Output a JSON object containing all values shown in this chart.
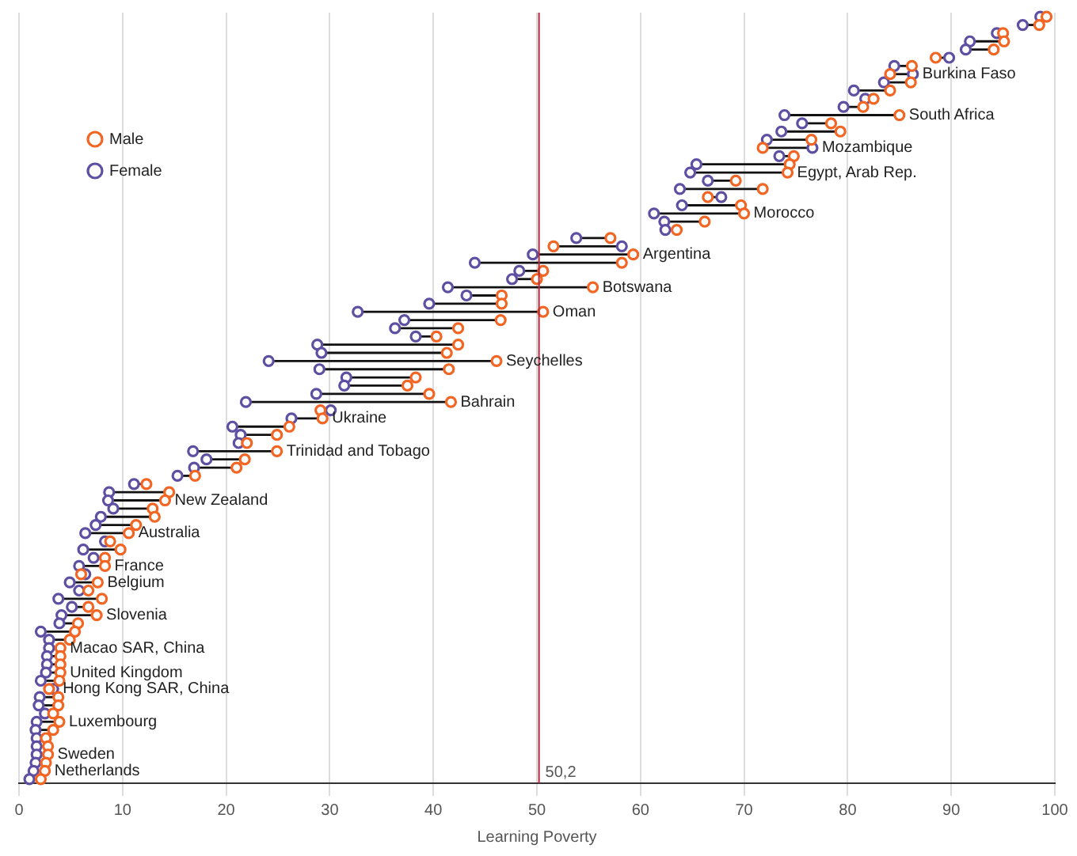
{
  "chart_data": {
    "type": "scatter",
    "orientation": "horizontal",
    "xlabel": "Learning Poverty",
    "categories": [
      null,
      null,
      null,
      null,
      null,
      null,
      null,
      "Burkina Faso",
      null,
      null,
      null,
      null,
      "South Africa",
      null,
      null,
      null,
      "Mozambique",
      null,
      null,
      "Egypt, Arab Rep.",
      null,
      null,
      null,
      null,
      "Morocco",
      null,
      null,
      null,
      null,
      "Argentina",
      null,
      null,
      null,
      "Botswana",
      null,
      null,
      "Oman",
      null,
      null,
      null,
      null,
      null,
      "Seychelles",
      null,
      null,
      null,
      null,
      "Bahrain",
      null,
      "Ukraine",
      null,
      null,
      null,
      "Trinidad and Tobago",
      null,
      null,
      null,
      null,
      null,
      "New Zealand",
      null,
      null,
      null,
      "Australia",
      null,
      null,
      null,
      "France",
      null,
      "Belgium",
      null,
      null,
      null,
      "Slovenia",
      null,
      null,
      null,
      "Macao SAR, China",
      null,
      null,
      "United Kingdom",
      null,
      "Hong Kong SAR, China",
      null,
      null,
      null,
      "Luxembourg",
      null,
      null,
      null,
      "Sweden",
      null,
      "Netherlands",
      null
    ],
    "series": [
      {
        "name": "Male",
        "color": "#f26522",
        "values": [
          99.2,
          98.5,
          95.0,
          95.1,
          94.1,
          88.5,
          86.2,
          84.1,
          86.1,
          84.1,
          82.5,
          81.5,
          85.0,
          78.4,
          79.3,
          76.5,
          71.8,
          74.8,
          74.4,
          74.2,
          69.2,
          71.8,
          66.5,
          69.7,
          70.0,
          66.2,
          63.5,
          57.1,
          51.6,
          59.3,
          58.2,
          50.6,
          50.0,
          55.4,
          46.6,
          46.6,
          50.6,
          46.5,
          42.4,
          40.3,
          42.4,
          41.3,
          46.1,
          41.5,
          38.3,
          37.5,
          39.6,
          41.7,
          29.1,
          29.3,
          26.1,
          24.9,
          22.0,
          24.9,
          21.8,
          21.0,
          17.0,
          12.3,
          14.5,
          14.1,
          12.9,
          13.1,
          11.3,
          10.6,
          8.8,
          9.8,
          8.3,
          8.3,
          6.0,
          7.6,
          6.7,
          8.0,
          6.7,
          7.5,
          5.7,
          5.4,
          4.9,
          4.0,
          4.0,
          4.0,
          4.0,
          3.9,
          2.9,
          3.8,
          3.8,
          3.3,
          3.9,
          3.3,
          2.6,
          2.8,
          2.8,
          2.6,
          2.5,
          2.1
        ]
      },
      {
        "name": "Female",
        "color": "#5e4fa2",
        "values": [
          98.6,
          96.9,
          94.4,
          91.8,
          91.4,
          89.8,
          84.5,
          86.3,
          83.5,
          80.6,
          81.7,
          79.6,
          73.9,
          75.6,
          73.6,
          72.2,
          76.6,
          73.4,
          65.4,
          64.8,
          66.5,
          63.8,
          67.8,
          64.0,
          61.3,
          62.3,
          62.4,
          53.8,
          58.2,
          49.6,
          44.0,
          48.3,
          47.6,
          41.4,
          43.2,
          39.6,
          32.7,
          37.2,
          36.3,
          38.3,
          28.8,
          29.2,
          24.1,
          29.0,
          31.6,
          31.4,
          28.7,
          21.9,
          30.1,
          26.3,
          20.6,
          21.4,
          21.2,
          16.8,
          18.1,
          16.9,
          15.3,
          11.1,
          8.7,
          8.6,
          9.1,
          7.9,
          7.4,
          6.4,
          8.3,
          6.2,
          7.2,
          5.8,
          6.4,
          4.9,
          5.8,
          3.8,
          5.1,
          4.1,
          3.9,
          2.1,
          2.9,
          2.9,
          2.7,
          2.7,
          2.6,
          2.1,
          3.3,
          2.0,
          1.9,
          2.5,
          1.7,
          1.6,
          1.7,
          1.7,
          1.7,
          1.6,
          1.4,
          1.0
        ]
      }
    ],
    "xlim": [
      0,
      100
    ],
    "xticks": [
      0,
      10,
      20,
      30,
      40,
      50,
      60,
      70,
      80,
      90,
      100
    ],
    "ref_lines": [
      {
        "axis": "x",
        "value": 50.2,
        "label": "50,2",
        "color": "#b5283a"
      }
    ],
    "grid": "x",
    "legend": "top left",
    "tick_labels": "x",
    "marker": "circle"
  }
}
